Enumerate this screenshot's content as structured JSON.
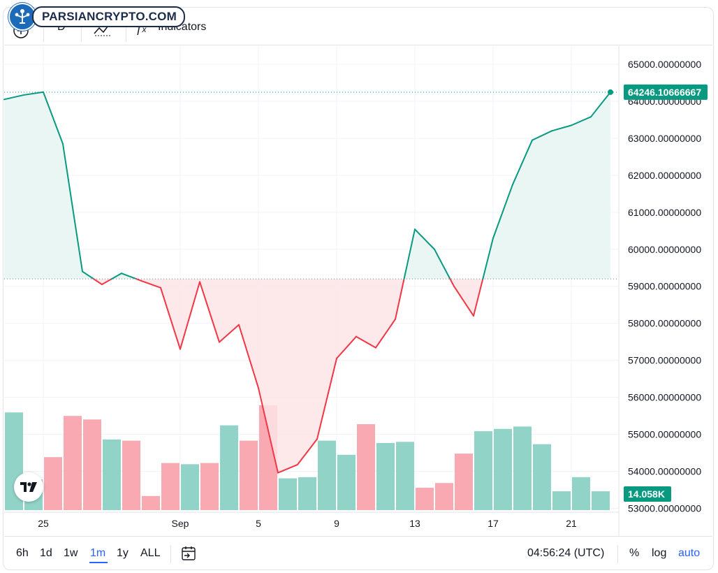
{
  "brand": {
    "logo_text": "PARSIANCRYPTO.COM"
  },
  "toolbar": {
    "items": [
      "D",
      "Indicators"
    ],
    "icons": [
      "plus-icon",
      "chart-type-icon",
      "fx-icon"
    ]
  },
  "bottom_bar": {
    "ranges": [
      "6h",
      "1d",
      "1w",
      "1m",
      "1y",
      "ALL"
    ],
    "active_range": "1m",
    "time": "04:56:24 (UTC)",
    "percent": "%",
    "log": "log",
    "auto": "auto"
  },
  "colors": {
    "up": "#089981",
    "down": "#f23645",
    "up_fill": "#e6f4f1",
    "down_fill": "#fde4e6",
    "vol_up": "#92d3c8",
    "vol_down": "#f9a9b1",
    "accent": "#2962ff"
  },
  "chart_data": {
    "type": "line",
    "baseline": 59200,
    "last_price_label": "64246.10666667",
    "last_volume_label": "14.058K",
    "ylim": [
      53000,
      65000
    ],
    "y_ticks": [
      "65000.00000000",
      "64000.00000000",
      "63000.00000000",
      "62000.00000000",
      "61000.00000000",
      "60000.00000000",
      "59000.00000000",
      "58000.00000000",
      "57000.00000000",
      "56000.00000000",
      "55000.00000000",
      "54000.00000000",
      "53000.00000000"
    ],
    "x_tick_labels": [
      "25",
      "Sep",
      "5",
      "9",
      "13",
      "17",
      "21"
    ],
    "x_tick_days": [
      2,
      9,
      13,
      17,
      21,
      25,
      29
    ],
    "days": [
      0,
      1,
      2,
      3,
      4,
      5,
      6,
      7,
      8,
      9,
      10,
      11,
      12,
      13,
      14,
      15,
      16,
      17,
      18,
      19,
      20,
      21,
      22,
      23,
      24,
      25,
      26,
      27,
      28,
      29,
      30,
      31
    ],
    "price": [
      64050,
      64170,
      64250,
      62850,
      59400,
      59050,
      59350,
      59150,
      58960,
      57300,
      59120,
      57490,
      57960,
      56250,
      53960,
      54180,
      54870,
      57050,
      57640,
      57340,
      58110,
      60540,
      60000,
      59000,
      58200,
      60300,
      61750,
      62950,
      63200,
      63350,
      63580,
      64246
    ],
    "volume_relative": [
      0.83,
      0.26,
      0.45,
      0.8,
      0.77,
      0.6,
      0.59,
      0.12,
      0.4,
      0.39,
      0.4,
      0.72,
      0.59,
      0.89,
      0.27,
      0.28,
      0.59,
      0.47,
      0.73,
      0.57,
      0.58,
      0.19,
      0.23,
      0.48,
      0.67,
      0.69,
      0.71,
      0.56,
      0.16,
      0.28,
      0.16
    ],
    "volume_direction": [
      "up",
      "up",
      "down",
      "down",
      "down",
      "up",
      "down",
      "down",
      "down",
      "up",
      "down",
      "up",
      "down",
      "down",
      "up",
      "up",
      "up",
      "up",
      "down",
      "up",
      "up",
      "down",
      "down",
      "down",
      "up",
      "up",
      "up",
      "up",
      "up",
      "up",
      "up"
    ]
  }
}
